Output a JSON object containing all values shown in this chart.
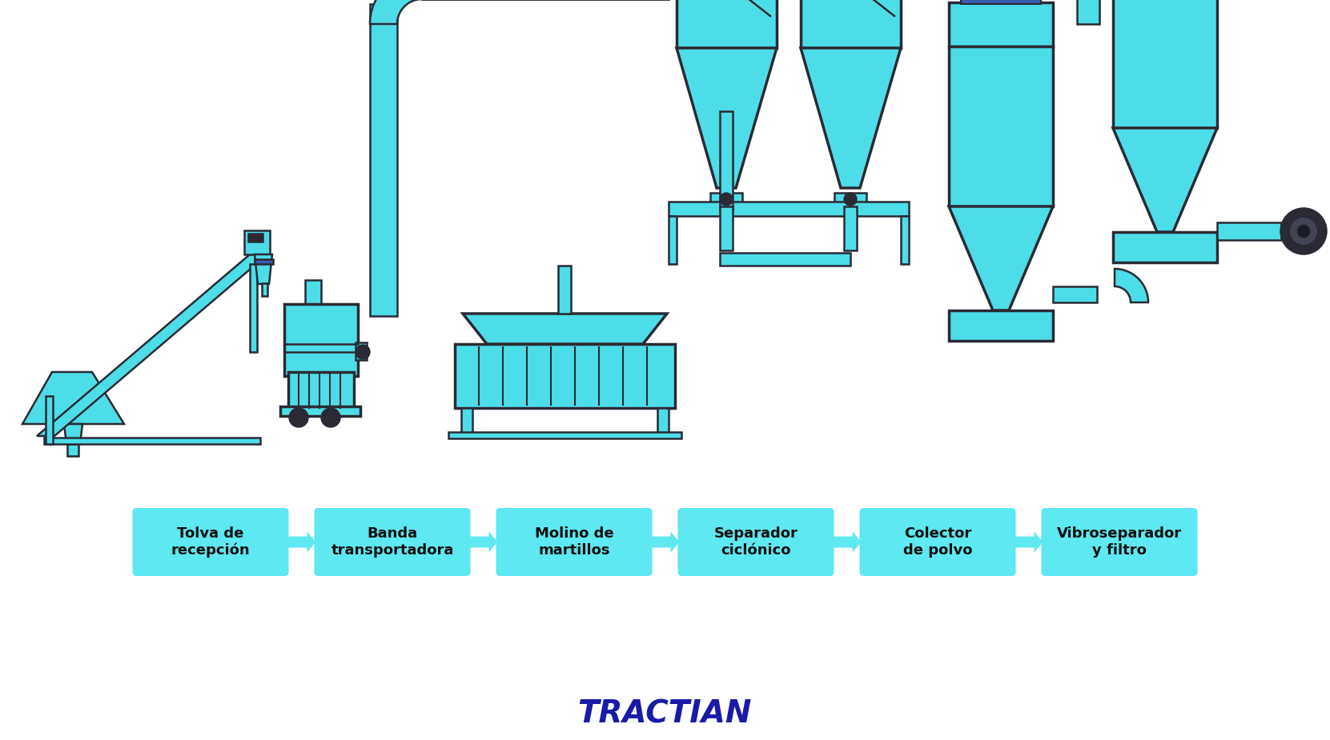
{
  "bg_color": "#ffffff",
  "cyan": "#4DDDE8",
  "dark": "#2A2A35",
  "blue_acc": "#3B5BAD",
  "box_fill": "#5DE8F2",
  "arrow_fill": "#5DE8F2",
  "box_labels": [
    "Tolva de\nrecepción",
    "Banda\ntransportadora",
    "Molino de\nmartillos",
    "Separador\nciclónico",
    "Colector\nde polvo",
    "Vibroseparador\ny filtro"
  ],
  "tractian": "TRACTIAN",
  "tractian_color": "#1a1aaa",
  "lw": 1.8,
  "lw2": 2.5
}
